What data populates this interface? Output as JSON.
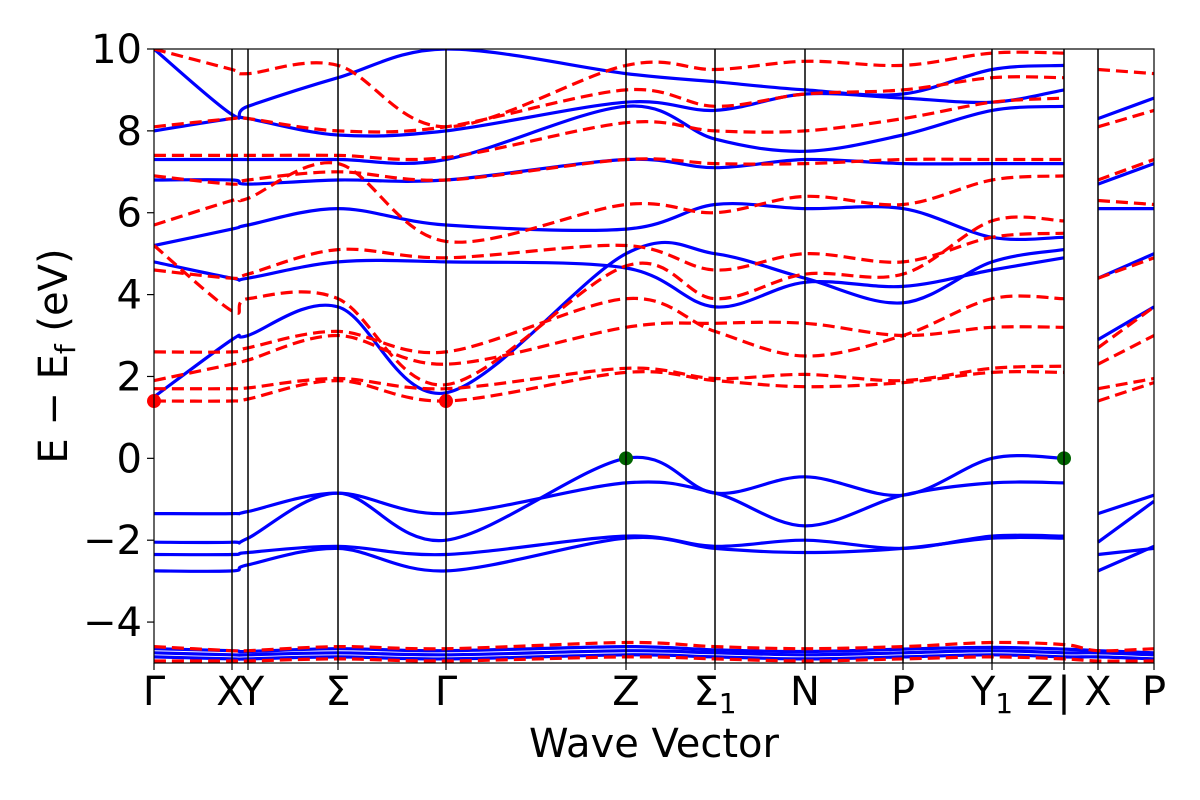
{
  "chart_data": {
    "type": "line",
    "xlabel": "Wave Vector",
    "ylabel": "E − E",
    "ylabel_sub": "f",
    "ylabel_unit": " (eV)",
    "ylim": [
      -5,
      10
    ],
    "yticks": [
      -4,
      -2,
      0,
      2,
      4,
      6,
      8,
      10
    ],
    "ytick_labels": [
      "−4",
      "−2",
      "0",
      "2",
      "4",
      "6",
      "8",
      "10"
    ],
    "xlim": [
      0,
      1
    ],
    "kpoints": [
      {
        "x": 0.0,
        "label": "Γ"
      },
      {
        "x": 0.078,
        "label": "X"
      },
      {
        "x": 0.094,
        "label": "Y"
      },
      {
        "x": 0.184,
        "label": "Σ"
      },
      {
        "x": 0.292,
        "label": "Γ"
      },
      {
        "x": 0.472,
        "label": "Z"
      },
      {
        "x": 0.561,
        "label": "Σ",
        "sub": "1"
      },
      {
        "x": 0.651,
        "label": "N"
      },
      {
        "x": 0.749,
        "label": "P"
      },
      {
        "x": 0.838,
        "label": "Y",
        "sub": "1"
      },
      {
        "x": 0.91,
        "label": "Z"
      },
      {
        "x": 0.91,
        "label": "|"
      },
      {
        "x": 0.944,
        "label": "X"
      },
      {
        "x": 1.0,
        "label": "P"
      }
    ],
    "colors": {
      "valence": "#0000ff",
      "conduction": "#ff0000",
      "vbm": "#006400",
      "cbm": "#ff0000"
    },
    "series": [
      {
        "style": "solid",
        "color": "#0000ff",
        "x": [
          0,
          0.078,
          0.094,
          0.184,
          0.292,
          0.472,
          0.561,
          0.651,
          0.749,
          0.838,
          0.91
        ],
        "y": [
          -1.35,
          -1.35,
          -1.3,
          -0.85,
          -1.35,
          -0.6,
          -0.85,
          -1.65,
          -0.9,
          -0.6,
          -0.6
        ]
      },
      {
        "style": "solid",
        "color": "#0000ff",
        "x": [
          0,
          0.078,
          0.094,
          0.184,
          0.292,
          0.472,
          0.561,
          0.651,
          0.749,
          0.838,
          0.91
        ],
        "y": [
          -2.05,
          -2.05,
          -1.95,
          -0.85,
          -2.0,
          0.0,
          -0.85,
          -0.45,
          -0.9,
          0.0,
          0.0
        ]
      },
      {
        "style": "solid",
        "color": "#0000ff",
        "x": [
          0,
          0.078,
          0.094,
          0.184,
          0.292,
          0.472,
          0.561,
          0.651,
          0.749,
          0.838,
          0.91
        ],
        "y": [
          -2.35,
          -2.35,
          -2.3,
          -2.15,
          -2.35,
          -1.9,
          -2.15,
          -2.0,
          -2.2,
          -1.9,
          -1.9
        ]
      },
      {
        "style": "solid",
        "color": "#0000ff",
        "x": [
          0,
          0.078,
          0.094,
          0.184,
          0.292,
          0.472,
          0.561,
          0.651,
          0.749,
          0.838,
          0.91
        ],
        "y": [
          -2.75,
          -2.75,
          -2.6,
          -2.2,
          -2.75,
          -1.95,
          -2.2,
          -2.3,
          -2.2,
          -1.95,
          -1.95
        ]
      },
      {
        "style": "solid",
        "color": "#0000ff",
        "x": [
          0.944,
          1.0
        ],
        "y": [
          -1.35,
          -0.9
        ]
      },
      {
        "style": "solid",
        "color": "#0000ff",
        "x": [
          0.944,
          1.0
        ],
        "y": [
          -2.05,
          -1.05
        ]
      },
      {
        "style": "solid",
        "color": "#0000ff",
        "x": [
          0.944,
          1.0
        ],
        "y": [
          -2.35,
          -2.2
        ]
      },
      {
        "style": "solid",
        "color": "#0000ff",
        "x": [
          0.944,
          1.0
        ],
        "y": [
          -2.75,
          -2.15
        ]
      },
      {
        "style": "solid",
        "color": "#0000ff",
        "x": [
          0,
          0.078,
          0.094,
          0.184,
          0.292,
          0.472,
          0.561,
          0.651,
          0.749,
          0.838,
          0.91,
          0.944,
          1.0
        ],
        "y": [
          -4.75,
          -4.8,
          -4.8,
          -4.75,
          -4.8,
          -4.7,
          -4.75,
          -4.8,
          -4.75,
          -4.7,
          -4.75,
          -4.75,
          -4.8
        ]
      },
      {
        "style": "solid",
        "color": "#0000ff",
        "x": [
          0,
          0.078,
          0.094,
          0.184,
          0.292,
          0.472,
          0.561,
          0.651,
          0.749,
          0.838,
          0.91,
          0.944,
          1.0
        ],
        "y": [
          -4.85,
          -4.9,
          -4.9,
          -4.85,
          -4.9,
          -4.8,
          -4.85,
          -4.9,
          -4.85,
          -4.8,
          -4.85,
          -4.85,
          -4.9
        ]
      },
      {
        "style": "solid",
        "color": "#0000ff",
        "x": [
          0,
          0.078,
          0.094,
          0.184,
          0.292,
          0.472,
          0.561,
          0.651,
          0.749,
          0.838,
          0.91,
          0.944,
          1.0
        ],
        "y": [
          -4.65,
          -4.7,
          -4.72,
          -4.65,
          -4.7,
          -4.6,
          -4.68,
          -4.72,
          -4.66,
          -4.62,
          -4.66,
          -4.7,
          -4.75
        ]
      },
      {
        "style": "solid",
        "color": "#0000ff",
        "x": [
          0,
          0.078,
          0.094,
          0.184,
          0.292,
          0.472,
          0.561,
          0.651,
          0.749,
          0.838,
          0.91
        ],
        "y": [
          1.5,
          2.9,
          3.0,
          3.7,
          1.6,
          5.0,
          5.0,
          4.4,
          3.8,
          4.8,
          5.1
        ]
      },
      {
        "style": "solid",
        "color": "#0000ff",
        "x": [
          0,
          0.078,
          0.094,
          0.184,
          0.292,
          0.472,
          0.561,
          0.651,
          0.749,
          0.838,
          0.91
        ],
        "y": [
          4.8,
          4.4,
          4.4,
          4.8,
          4.8,
          4.65,
          3.7,
          4.3,
          4.2,
          4.6,
          4.9
        ]
      },
      {
        "style": "solid",
        "color": "#0000ff",
        "x": [
          0,
          0.078,
          0.094,
          0.184,
          0.292,
          0.472,
          0.561,
          0.651,
          0.749,
          0.838,
          0.91
        ],
        "y": [
          5.2,
          5.6,
          5.7,
          6.1,
          5.7,
          5.6,
          6.2,
          6.1,
          6.1,
          5.4,
          5.4
        ]
      },
      {
        "style": "solid",
        "color": "#0000ff",
        "x": [
          0,
          0.078,
          0.094,
          0.184,
          0.292,
          0.472,
          0.561,
          0.651,
          0.749,
          0.838,
          0.91
        ],
        "y": [
          6.8,
          6.8,
          6.7,
          6.8,
          6.8,
          7.3,
          7.1,
          7.3,
          7.2,
          7.2,
          7.2
        ]
      },
      {
        "style": "solid",
        "color": "#0000ff",
        "x": [
          0,
          0.078,
          0.094,
          0.184,
          0.292,
          0.472,
          0.561,
          0.651,
          0.749,
          0.838,
          0.91
        ],
        "y": [
          7.3,
          7.3,
          7.3,
          7.3,
          7.3,
          8.6,
          7.8,
          7.5,
          7.9,
          8.5,
          8.6
        ]
      },
      {
        "style": "solid",
        "color": "#0000ff",
        "x": [
          0,
          0.078,
          0.094,
          0.184,
          0.292,
          0.472,
          0.561,
          0.651,
          0.749,
          0.838,
          0.91
        ],
        "y": [
          8.0,
          8.3,
          8.3,
          7.9,
          8.0,
          8.7,
          8.5,
          8.9,
          8.8,
          8.7,
          9.0
        ]
      },
      {
        "style": "solid",
        "color": "#0000ff",
        "x": [
          0,
          0.078,
          0.094,
          0.184,
          0.292,
          0.472,
          0.561,
          0.651,
          0.749,
          0.838,
          0.91
        ],
        "y": [
          10.0,
          8.4,
          8.6,
          9.3,
          10.0,
          9.4,
          9.2,
          9.0,
          8.9,
          9.5,
          9.6
        ]
      },
      {
        "style": "solid",
        "color": "#0000ff",
        "x": [
          0.944,
          1.0
        ],
        "y": [
          2.9,
          3.7
        ]
      },
      {
        "style": "solid",
        "color": "#0000ff",
        "x": [
          0.944,
          1.0
        ],
        "y": [
          4.4,
          5.0
        ]
      },
      {
        "style": "solid",
        "color": "#0000ff",
        "x": [
          0.944,
          1.0
        ],
        "y": [
          6.1,
          6.1
        ]
      },
      {
        "style": "solid",
        "color": "#0000ff",
        "x": [
          0.944,
          1.0
        ],
        "y": [
          6.7,
          7.2
        ]
      },
      {
        "style": "solid",
        "color": "#0000ff",
        "x": [
          0.944,
          1.0
        ],
        "y": [
          8.3,
          8.8
        ]
      },
      {
        "style": "dashed",
        "color": "#ff0000",
        "x": [
          0,
          0.078,
          0.094,
          0.184,
          0.292,
          0.472,
          0.561,
          0.651,
          0.749,
          0.838,
          0.91
        ],
        "y": [
          1.4,
          1.4,
          1.45,
          1.9,
          1.4,
          2.1,
          1.9,
          1.75,
          1.85,
          2.1,
          2.1
        ]
      },
      {
        "style": "dashed",
        "color": "#ff0000",
        "x": [
          0,
          0.078,
          0.094,
          0.184,
          0.292,
          0.472,
          0.561,
          0.651,
          0.749,
          0.838,
          0.91
        ],
        "y": [
          1.7,
          1.7,
          1.72,
          1.95,
          1.7,
          2.2,
          1.95,
          2.05,
          1.9,
          2.2,
          2.25
        ]
      },
      {
        "style": "dashed",
        "color": "#ff0000",
        "x": [
          0,
          0.078,
          0.094,
          0.184,
          0.292,
          0.472,
          0.561,
          0.651,
          0.749,
          0.838,
          0.91
        ],
        "y": [
          1.9,
          2.3,
          2.4,
          3.0,
          2.3,
          3.2,
          3.3,
          3.3,
          3.0,
          3.2,
          3.2
        ]
      },
      {
        "style": "dashed",
        "color": "#ff0000",
        "x": [
          0,
          0.078,
          0.094,
          0.184,
          0.292,
          0.472,
          0.561,
          0.651,
          0.749,
          0.838,
          0.91
        ],
        "y": [
          2.6,
          2.6,
          2.7,
          3.1,
          2.6,
          3.9,
          3.1,
          2.5,
          3.0,
          3.9,
          3.9
        ]
      },
      {
        "style": "dashed",
        "color": "#ff0000",
        "x": [
          0,
          0.078,
          0.094,
          0.184,
          0.292,
          0.472,
          0.561,
          0.651,
          0.749,
          0.838,
          0.91
        ],
        "y": [
          5.2,
          3.6,
          3.9,
          3.9,
          1.8,
          4.7,
          3.9,
          4.5,
          4.5,
          5.8,
          5.8
        ]
      },
      {
        "style": "dashed",
        "color": "#ff0000",
        "x": [
          0,
          0.078,
          0.094,
          0.184,
          0.292,
          0.472,
          0.561,
          0.651,
          0.749,
          0.838,
          0.91
        ],
        "y": [
          4.6,
          4.4,
          4.5,
          5.1,
          4.9,
          5.2,
          4.6,
          5.0,
          4.8,
          5.4,
          5.5
        ]
      },
      {
        "style": "dashed",
        "color": "#ff0000",
        "x": [
          0,
          0.078,
          0.094,
          0.184,
          0.292,
          0.472,
          0.561,
          0.651,
          0.749,
          0.838,
          0.91
        ],
        "y": [
          5.7,
          6.3,
          6.35,
          7.2,
          5.3,
          6.2,
          6.0,
          6.4,
          6.2,
          6.8,
          6.9
        ]
      },
      {
        "style": "dashed",
        "color": "#ff0000",
        "x": [
          0,
          0.078,
          0.094,
          0.184,
          0.292,
          0.472,
          0.561,
          0.651,
          0.749,
          0.838,
          0.91
        ],
        "y": [
          6.9,
          6.7,
          6.8,
          7.0,
          6.8,
          7.3,
          7.2,
          7.2,
          7.3,
          7.3,
          7.3
        ]
      },
      {
        "style": "dashed",
        "color": "#ff0000",
        "x": [
          0,
          0.078,
          0.094,
          0.184,
          0.292,
          0.472,
          0.561,
          0.651,
          0.749,
          0.838,
          0.91
        ],
        "y": [
          7.4,
          7.4,
          7.4,
          7.4,
          7.35,
          8.2,
          8.0,
          8.0,
          8.3,
          8.7,
          8.8
        ]
      },
      {
        "style": "dashed",
        "color": "#ff0000",
        "x": [
          0,
          0.078,
          0.094,
          0.184,
          0.292,
          0.472,
          0.561,
          0.651,
          0.749,
          0.838,
          0.91
        ],
        "y": [
          8.1,
          8.3,
          8.3,
          8.0,
          8.1,
          9.0,
          8.6,
          8.9,
          9.0,
          9.3,
          9.3
        ]
      },
      {
        "style": "dashed",
        "color": "#ff0000",
        "x": [
          0,
          0.078,
          0.094,
          0.184,
          0.292,
          0.472,
          0.561,
          0.651,
          0.749,
          0.838,
          0.91
        ],
        "y": [
          10.0,
          9.5,
          9.4,
          9.6,
          8.1,
          9.6,
          9.5,
          9.7,
          9.6,
          9.9,
          9.9
        ]
      },
      {
        "style": "dashed",
        "color": "#ff0000",
        "x": [
          0.944,
          1.0
        ],
        "y": [
          1.4,
          1.85
        ]
      },
      {
        "style": "dashed",
        "color": "#ff0000",
        "x": [
          0.944,
          1.0
        ],
        "y": [
          1.7,
          1.95
        ]
      },
      {
        "style": "dashed",
        "color": "#ff0000",
        "x": [
          0.944,
          1.0
        ],
        "y": [
          2.3,
          3.0
        ]
      },
      {
        "style": "dashed",
        "color": "#ff0000",
        "x": [
          0.944,
          1.0
        ],
        "y": [
          2.7,
          3.7
        ]
      },
      {
        "style": "dashed",
        "color": "#ff0000",
        "x": [
          0.944,
          1.0
        ],
        "y": [
          4.4,
          4.9
        ]
      },
      {
        "style": "dashed",
        "color": "#ff0000",
        "x": [
          0.944,
          1.0
        ],
        "y": [
          6.3,
          6.2
        ]
      },
      {
        "style": "dashed",
        "color": "#ff0000",
        "x": [
          0.944,
          1.0
        ],
        "y": [
          6.8,
          7.3
        ]
      },
      {
        "style": "dashed",
        "color": "#ff0000",
        "x": [
          0.944,
          1.0
        ],
        "y": [
          8.1,
          8.5
        ]
      },
      {
        "style": "dashed",
        "color": "#ff0000",
        "x": [
          0.944,
          1.0
        ],
        "y": [
          9.5,
          9.4
        ]
      },
      {
        "style": "dashed",
        "color": "#ff0000",
        "x": [
          0,
          0.078,
          0.094,
          0.184,
          0.292,
          0.472,
          0.561,
          0.651,
          0.749,
          0.838,
          0.91,
          0.944,
          1.0
        ],
        "y": [
          -4.6,
          -4.7,
          -4.7,
          -4.6,
          -4.65,
          -4.5,
          -4.6,
          -4.65,
          -4.6,
          -4.5,
          -4.55,
          -4.7,
          -4.65
        ]
      },
      {
        "style": "dashed",
        "color": "#ff0000",
        "x": [
          0,
          0.078,
          0.094,
          0.184,
          0.292,
          0.472,
          0.561,
          0.651,
          0.749,
          0.838,
          0.91,
          0.944,
          1.0
        ],
        "y": [
          -4.95,
          -4.95,
          -4.95,
          -4.9,
          -4.95,
          -4.85,
          -4.9,
          -4.95,
          -4.9,
          -4.85,
          -4.9,
          -4.95,
          -4.95
        ]
      }
    ],
    "markers": [
      {
        "x": 0.0,
        "y": 1.4,
        "color": "#ff0000"
      },
      {
        "x": 0.292,
        "y": 1.4,
        "color": "#ff0000"
      },
      {
        "x": 0.472,
        "y": 0.0,
        "color": "#006400"
      },
      {
        "x": 0.91,
        "y": 0.0,
        "color": "#006400"
      }
    ]
  }
}
